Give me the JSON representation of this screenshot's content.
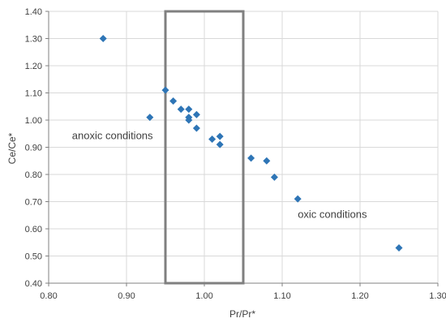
{
  "chart_data": {
    "type": "scatter",
    "xlabel": "Pr/Pr*",
    "ylabel": "Ce/Ce*",
    "xlim": [
      0.8,
      1.3
    ],
    "ylim": [
      0.4,
      1.4
    ],
    "x_ticks": [
      "0.80",
      "0.90",
      "1.00",
      "1.10",
      "1.20",
      "1.30"
    ],
    "y_ticks": [
      "0.40",
      "0.50",
      "0.60",
      "0.70",
      "0.80",
      "0.90",
      "1.00",
      "1.10",
      "1.20",
      "1.30",
      "1.40"
    ],
    "grid": true,
    "marker": "diamond",
    "marker_color": "#2E75B6",
    "points": [
      {
        "x": 0.87,
        "y": 1.3
      },
      {
        "x": 0.93,
        "y": 1.01
      },
      {
        "x": 0.95,
        "y": 1.11
      },
      {
        "x": 0.96,
        "y": 1.07
      },
      {
        "x": 0.97,
        "y": 1.04
      },
      {
        "x": 0.98,
        "y": 1.04
      },
      {
        "x": 0.98,
        "y": 1.01
      },
      {
        "x": 0.98,
        "y": 1.0
      },
      {
        "x": 0.99,
        "y": 1.02
      },
      {
        "x": 0.99,
        "y": 0.97
      },
      {
        "x": 1.01,
        "y": 0.93
      },
      {
        "x": 1.02,
        "y": 0.94
      },
      {
        "x": 1.02,
        "y": 0.91
      },
      {
        "x": 1.06,
        "y": 0.86
      },
      {
        "x": 1.08,
        "y": 0.85
      },
      {
        "x": 1.09,
        "y": 0.79
      },
      {
        "x": 1.12,
        "y": 0.71
      },
      {
        "x": 1.25,
        "y": 0.53
      }
    ],
    "highlight_box": {
      "x_range": [
        0.95,
        1.05
      ],
      "y_range": [
        0.4,
        1.4
      ],
      "color": "#808080"
    },
    "annotations": [
      {
        "text": "anoxic conditions",
        "x": 0.83,
        "y": 0.93
      },
      {
        "text": "oxic conditions",
        "x": 1.12,
        "y": 0.64
      }
    ]
  }
}
